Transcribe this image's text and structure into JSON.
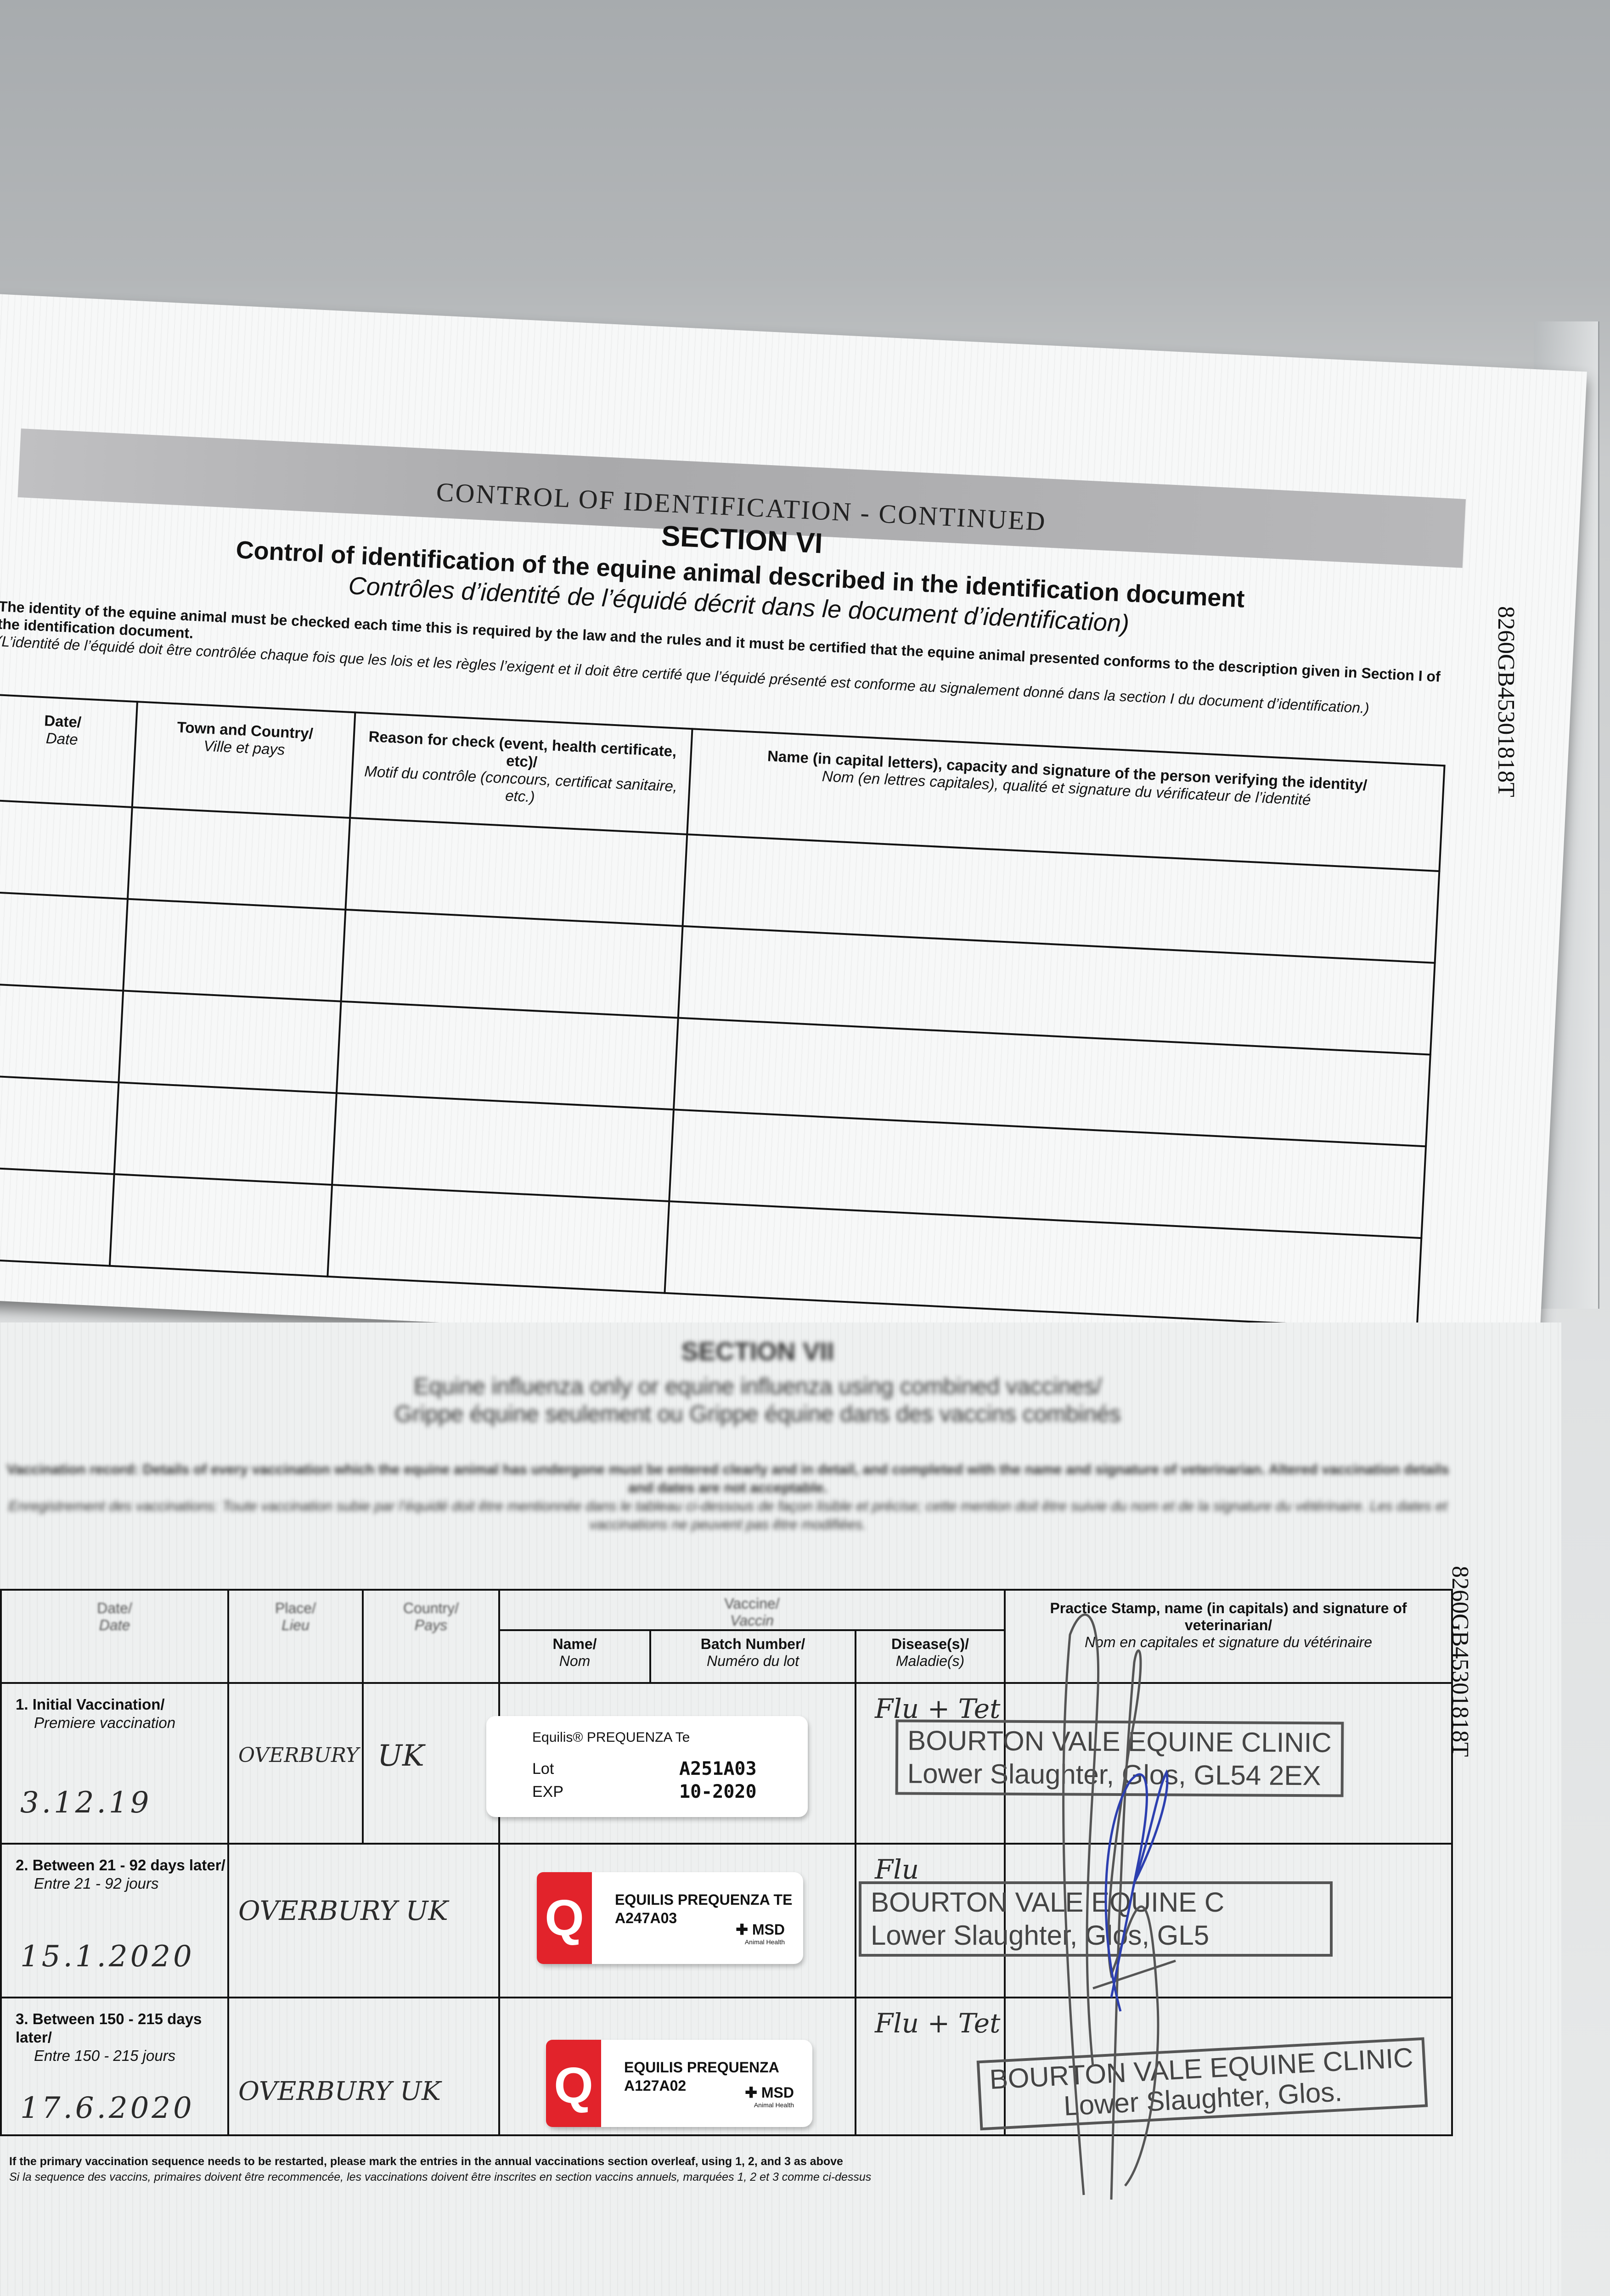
{
  "top_page": {
    "banner_title": "CONTROL OF IDENTIFICATION - CONTINUED",
    "section": "SECTION VI",
    "title_en": "Control of identification of the equine animal described in the identification document",
    "title_fr": "Contrôles d’identité de l’équidé décrit dans le document d’identification)",
    "instruction_en": "The identity of the equine animal must be checked each time this is required by the law and the rules and it must be certified that the equine animal presented conforms to the description given in Section I of the identification document.",
    "instruction_fr": "(L’identité de l’équidé doit être contrôlée chaque fois que les lois et les règles l’exigent et il doit être certifé que l’équidé présenté est conforme au signalement donné dans la section I du document d’identification.)",
    "table": {
      "headers": [
        {
          "en": "Date/",
          "fr": "Date"
        },
        {
          "en": "Town and Country/",
          "fr": "Ville et pays"
        },
        {
          "en": "Reason for check (event, health certificate, etc)/",
          "fr": "Motif du contrôle (concours, certificat sanitaire, etc.)"
        },
        {
          "en": "Name (in capital letters), capacity and signature of the person verifying the identity/",
          "fr": "Nom (en lettres capitales), qualité et signature du vérificateur de l’identité"
        }
      ],
      "rows": [
        [
          "",
          "",
          "",
          ""
        ],
        [
          "",
          "",
          "",
          ""
        ],
        [
          "",
          "",
          "",
          ""
        ],
        [
          "",
          "",
          "",
          ""
        ],
        [
          "",
          "",
          "",
          ""
        ]
      ]
    },
    "document_id": "8260GB45301818T"
  },
  "bottom_page": {
    "section": "SECTION VII",
    "subtitle_en": "Equine influenza only or equine influenza using combined vaccines/",
    "subtitle_fr": "Grippe équine seulement ou Grippe équine dans des vaccins combinés",
    "instruction_en": "Vaccination record: Details of every vaccination which the equine animal has undergone must be entered clearly and in detail, and completed with the name and signature of veterinarian. Altered vaccination details and dates are not acceptable.",
    "instruction_fr": "Enregistrement des vaccinations: Toute vaccination subie par l’équidé doit être mentionnée dans le tableau ci-dessous de façon lisible et précise; cette mention doit être suivie du nom et de la signature du vétérinaire. Les dates et vaccinations ne peuvent pas être modifiées.",
    "table": {
      "headers": {
        "date": {
          "en": "Date/",
          "fr": "Date"
        },
        "place": {
          "en": "Place/",
          "fr": "Lieu"
        },
        "country": {
          "en": "Country/",
          "fr": "Pays"
        },
        "vaccine": {
          "en": "Vaccine/",
          "fr": "Vaccin"
        },
        "name": {
          "en": "Name/",
          "fr": "Nom"
        },
        "batch": {
          "en": "Batch Number/",
          "fr": "Numéro du lot"
        },
        "disease": {
          "en": "Disease(s)/",
          "fr": "Maladie(s)"
        },
        "stamp": {
          "en": "Practice Stamp, name (in capitals) and signature of veterinarian/",
          "fr": "Nom en capitales et signature du vétérinaire"
        }
      },
      "rows": [
        {
          "label_en": "1. Initial Vaccination/",
          "label_fr": "Premiere vaccination",
          "date": "3.12.19",
          "place": "OVERBURY",
          "country": "UK",
          "sticker": {
            "brand": "Equilis® PREQUENZA Te",
            "lot_label": "Lot",
            "exp_label": "EXP",
            "lot": "A251A03",
            "exp": "10-2020"
          },
          "disease": "Flu + Tet",
          "stamp_line1": "BOURTON VALE EQUINE CLINIC",
          "stamp_line2": "Lower Slaughter, Glos, GL54 2EX"
        },
        {
          "label_en": "2. Between 21 - 92 days later/",
          "label_fr": "Entre 21 - 92 jours",
          "date": "15.1.2020",
          "place": "OVERBURY UK",
          "country": "",
          "sticker": {
            "logo": "Q",
            "name": "EQUILIS PREQUENZA TE",
            "batch": "A247A03",
            "maker": "MSD",
            "maker_sub": "Animal Health"
          },
          "disease": "Flu",
          "stamp_line1": "BOURTON VALE EQUINE C",
          "stamp_line2": "Lower Slaughter, Glos, GL5"
        },
        {
          "label_en": "3. Between 150 - 215 days later/",
          "label_fr": "Entre 150 - 215 jours",
          "date": "17.6.2020",
          "place": "OVERBURY UK",
          "country": "",
          "sticker": {
            "logo": "Q",
            "name": "EQUILIS PREQUENZA",
            "batch": "A127A02",
            "maker": "MSD",
            "maker_sub": "Animal Health"
          },
          "disease": "Flu + Tet",
          "stamp_line1": "BOURTON VALE EQUINE CLINIC",
          "stamp_line2": "Lower Slaughter, Glos."
        }
      ]
    },
    "footer_en": "If the primary vaccination sequence needs to be restarted, please mark the entries in the annual vaccinations section overleaf, using 1, 2, and 3 as above",
    "footer_fr": "Si la sequence des vaccins, primaires doivent être recommencée, les vaccinations doivent être inscrites en section vaccins annuels, marquées 1, 2 et 3 comme ci-dessus",
    "document_id": "8260GB45301818T"
  },
  "colors": {
    "logo_red": "#e2232b",
    "stamp_ink": "#444444",
    "signature_blue": "#2c3fb0",
    "banner_grey": "#b0b0b2"
  }
}
